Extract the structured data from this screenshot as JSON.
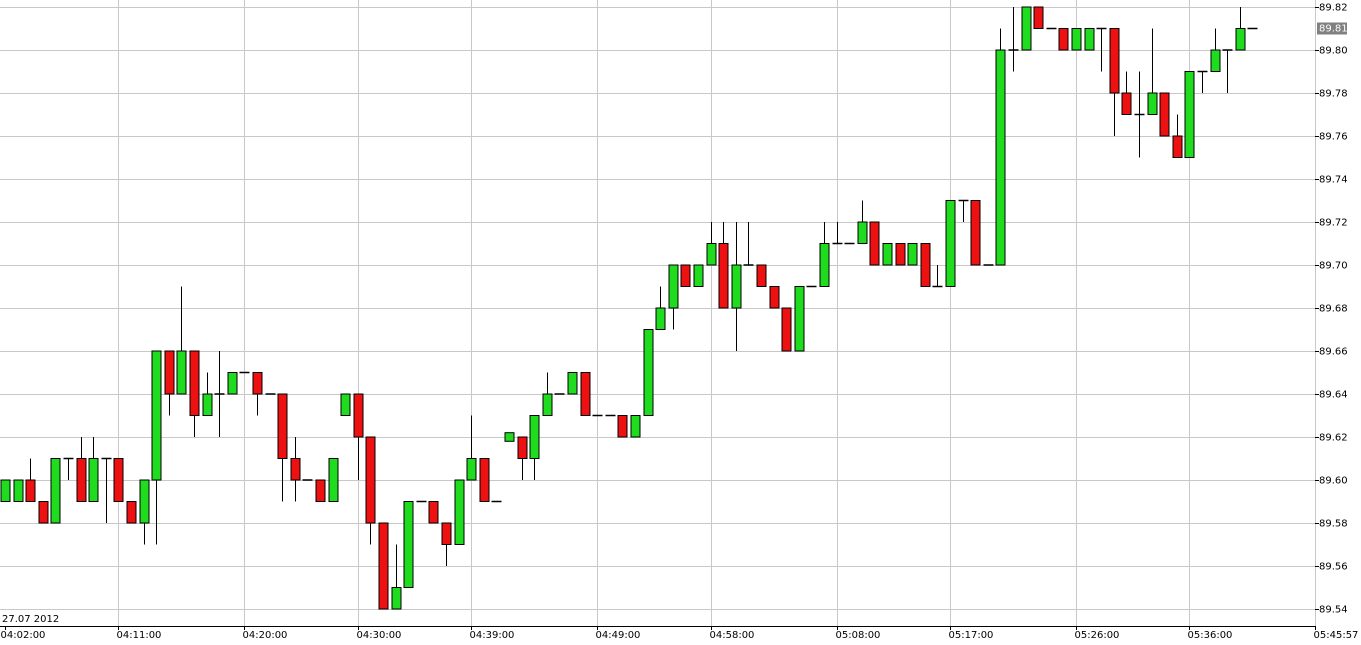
{
  "chart_data": {
    "type": "candlestick",
    "date_label": "27.07 2012",
    "up_color": "#1fdc1f",
    "down_color": "#ee1111",
    "grid": true,
    "categories": [
      "04:02:00",
      null,
      null,
      null,
      null,
      null,
      null,
      null,
      null,
      "04:11:00",
      null,
      null,
      null,
      null,
      null,
      null,
      null,
      null,
      null,
      "04:20:00",
      null,
      null,
      null,
      null,
      null,
      null,
      null,
      null,
      "04:30:00",
      null,
      null,
      null,
      null,
      null,
      null,
      null,
      null,
      "04:39:00",
      null,
      null,
      null,
      null,
      null,
      null,
      null,
      null,
      null,
      "04:49:00",
      null,
      null,
      null,
      null,
      null,
      null,
      null,
      null,
      "04:58:00",
      null,
      null,
      null,
      null,
      null,
      null,
      null,
      null,
      null,
      "05:08:00",
      null,
      null,
      null,
      null,
      null,
      null,
      null,
      null,
      "05:17:00",
      null,
      null,
      null,
      null,
      null,
      null,
      null,
      null,
      null,
      "05:26:00",
      null,
      null,
      null,
      null,
      null,
      null,
      null,
      null,
      "05:36:00",
      null,
      null,
      null,
      null,
      null,
      null,
      null,
      null,
      null,
      "05:45:57",
      null
    ],
    "open": [
      89.59,
      89.59,
      89.6,
      89.59,
      89.58,
      89.61,
      89.61,
      89.59,
      89.61,
      89.61,
      89.59,
      89.58,
      89.6,
      89.66,
      89.64,
      89.66,
      89.63,
      89.64,
      89.64,
      89.65,
      89.65,
      89.64,
      89.64,
      89.61,
      89.6,
      89.6,
      89.59,
      89.63,
      89.64,
      89.62,
      89.58,
      89.54,
      89.55,
      89.59,
      89.59,
      89.58,
      89.57,
      89.6,
      89.61,
      89.59,
      89.618,
      89.62,
      89.61,
      89.63,
      89.64,
      89.64,
      89.65,
      89.63,
      89.63,
      89.63,
      89.62,
      89.63,
      89.67,
      89.68,
      89.7,
      89.69,
      89.7,
      89.71,
      89.68,
      89.7,
      89.7,
      89.69,
      89.68,
      89.66,
      89.69,
      89.69,
      89.71,
      89.71,
      89.71,
      89.72,
      89.7,
      89.71,
      89.7,
      89.71,
      89.69,
      89.69,
      89.73,
      89.73,
      89.7,
      89.7,
      89.8,
      89.8,
      89.82,
      89.81,
      89.81,
      89.8,
      89.8,
      89.81,
      89.81,
      89.78,
      89.77,
      89.77,
      89.78,
      89.76,
      89.75,
      89.79,
      89.79,
      89.8,
      89.8,
      89.81,
      null,
      null,
      null,
      null,
      null,
      null
    ],
    "high": [
      89.6,
      89.6,
      89.61,
      89.59,
      89.61,
      89.61,
      89.62,
      89.62,
      89.61,
      89.61,
      89.59,
      89.6,
      89.66,
      89.66,
      89.69,
      89.66,
      89.65,
      89.66,
      89.65,
      89.65,
      89.65,
      89.64,
      89.64,
      89.62,
      89.6,
      89.6,
      89.61,
      89.64,
      89.64,
      89.62,
      89.58,
      89.57,
      89.59,
      89.59,
      89.59,
      89.58,
      89.6,
      89.63,
      89.61,
      89.59,
      89.622,
      89.62,
      89.63,
      89.65,
      89.64,
      89.65,
      89.65,
      89.63,
      89.63,
      89.63,
      89.63,
      89.67,
      89.69,
      89.7,
      89.7,
      89.7,
      89.72,
      89.72,
      89.72,
      89.72,
      89.7,
      89.69,
      89.68,
      89.69,
      89.69,
      89.72,
      89.72,
      89.71,
      89.73,
      89.72,
      89.71,
      89.71,
      89.71,
      89.71,
      89.7,
      89.73,
      89.73,
      89.73,
      89.7,
      89.81,
      89.82,
      89.82,
      89.82,
      89.81,
      89.81,
      89.81,
      89.81,
      89.81,
      89.81,
      89.79,
      89.79,
      89.81,
      89.78,
      89.77,
      89.79,
      89.79,
      89.81,
      89.8,
      89.82,
      89.81,
      null,
      null,
      null,
      null,
      null,
      null
    ],
    "low": [
      89.59,
      89.59,
      89.59,
      89.58,
      89.58,
      89.6,
      89.59,
      89.59,
      89.58,
      89.59,
      89.58,
      89.57,
      89.57,
      89.63,
      89.64,
      89.62,
      89.63,
      89.62,
      89.64,
      89.65,
      89.63,
      89.64,
      89.59,
      89.59,
      89.6,
      89.59,
      89.59,
      89.63,
      89.6,
      89.57,
      89.54,
      89.54,
      89.55,
      89.59,
      89.58,
      89.56,
      89.57,
      89.6,
      89.59,
      89.59,
      89.618,
      89.6,
      89.6,
      89.63,
      89.64,
      89.64,
      89.63,
      89.63,
      89.63,
      89.62,
      89.62,
      89.63,
      89.67,
      89.67,
      89.69,
      89.69,
      89.7,
      89.68,
      89.66,
      89.7,
      89.69,
      89.68,
      89.66,
      89.66,
      89.69,
      89.69,
      89.71,
      89.71,
      89.71,
      89.7,
      89.7,
      89.7,
      89.7,
      89.69,
      89.69,
      89.69,
      89.72,
      89.7,
      89.7,
      89.7,
      89.79,
      89.8,
      89.81,
      89.81,
      89.8,
      89.8,
      89.8,
      89.79,
      89.76,
      89.77,
      89.75,
      89.77,
      89.76,
      89.75,
      89.75,
      89.78,
      89.79,
      89.78,
      89.8,
      89.81,
      null,
      null,
      null,
      null,
      null,
      null
    ],
    "close": [
      89.6,
      89.6,
      89.59,
      89.58,
      89.61,
      89.61,
      89.59,
      89.61,
      89.61,
      89.59,
      89.58,
      89.6,
      89.66,
      89.64,
      89.66,
      89.63,
      89.64,
      89.64,
      89.65,
      89.65,
      89.64,
      89.64,
      89.61,
      89.6,
      89.6,
      89.59,
      89.61,
      89.64,
      89.62,
      89.58,
      89.54,
      89.55,
      89.59,
      89.59,
      89.58,
      89.57,
      89.6,
      89.61,
      89.59,
      89.59,
      89.622,
      89.61,
      89.63,
      89.64,
      89.64,
      89.65,
      89.63,
      89.63,
      89.63,
      89.62,
      89.63,
      89.67,
      89.68,
      89.7,
      89.69,
      89.7,
      89.71,
      89.68,
      89.7,
      89.7,
      89.69,
      89.68,
      89.66,
      89.69,
      89.69,
      89.71,
      89.71,
      89.71,
      89.72,
      89.7,
      89.71,
      89.7,
      89.71,
      89.69,
      89.69,
      89.73,
      89.73,
      89.7,
      89.7,
      89.8,
      89.8,
      89.82,
      89.81,
      89.81,
      89.8,
      89.81,
      89.81,
      89.81,
      89.78,
      89.77,
      89.77,
      89.78,
      89.76,
      89.75,
      89.79,
      89.79,
      89.8,
      89.8,
      89.81,
      89.81,
      null,
      null,
      null,
      null,
      null,
      null
    ],
    "current_price": {
      "value": 89.81,
      "label": "89.81"
    },
    "ylim": [
      89.54,
      89.82
    ],
    "yticks": [
      89.54,
      89.56,
      89.58,
      {
        "value": 89.6,
        "label": "89.60"
      },
      89.62,
      89.64,
      89.66,
      89.68,
      {
        "value": 89.7,
        "label": "89.70"
      },
      89.72,
      89.74,
      89.76,
      89.78,
      {
        "value": 89.8,
        "label": "89.80"
      },
      89.82
    ]
  }
}
